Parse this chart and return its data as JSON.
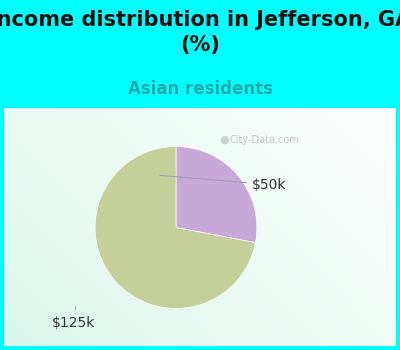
{
  "title": "Income distribution in Jefferson, GA\n(%)",
  "subtitle": "Asian residents",
  "title_fontsize": 15,
  "subtitle_fontsize": 12,
  "title_color": "#111111",
  "subtitle_color": "#22aaaa",
  "bg_color": "#00ffff",
  "slices": [
    {
      "label": "$125k",
      "value": 72,
      "color": "#c5cf9a"
    },
    {
      "label": "$50k",
      "value": 28,
      "color": "#c8a8d8"
    }
  ],
  "figsize": [
    4.0,
    3.5
  ],
  "dpi": 100,
  "watermark": "City-Data.com",
  "label_fontsize": 10
}
